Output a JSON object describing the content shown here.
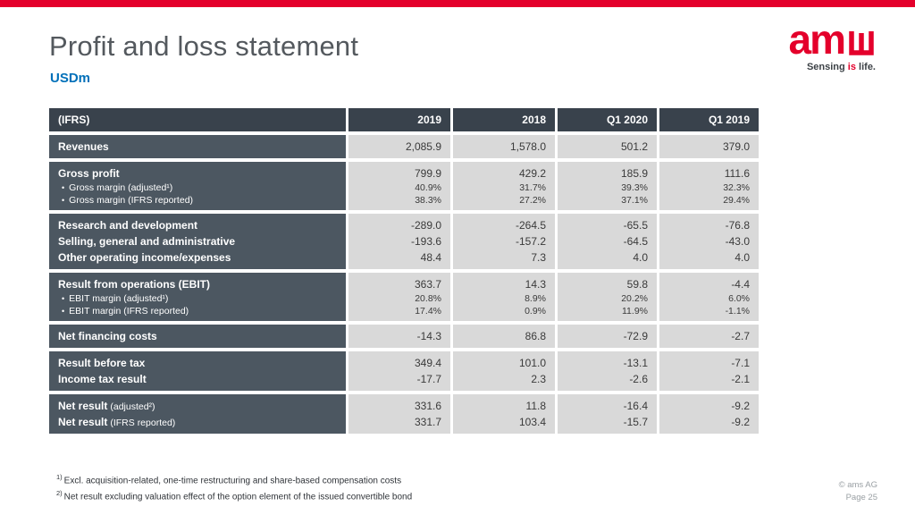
{
  "meta": {
    "accent_red": "#e4002b",
    "subtitle_blue": "#0070b9",
    "header_bg": "#39424c",
    "label_bg": "#4c5761",
    "value_bg": "#d9d9d9"
  },
  "header": {
    "title": "Profit and loss statement",
    "subtitle": "USDm"
  },
  "logo": {
    "text": "am",
    "tagline1": "Sensing ",
    "tagline2": "is",
    "tagline3": " life."
  },
  "table": {
    "columns": [
      "(IFRS)",
      "2019",
      "2018",
      "Q1 2020",
      "Q1 2019"
    ],
    "sections": [
      {
        "rows": [
          {
            "style": "main",
            "label": "Revenues",
            "suffix": "",
            "values": [
              "2,085.9",
              "1,578.0",
              "501.2",
              "379.0"
            ]
          }
        ]
      },
      {
        "rows": [
          {
            "style": "main",
            "label": "Gross profit",
            "suffix": "",
            "values": [
              "799.9",
              "429.2",
              "185.9",
              "111.6"
            ]
          },
          {
            "style": "sub",
            "label": "Gross margin (adjusted¹)",
            "suffix": "",
            "values": [
              "40.9%",
              "31.7%",
              "39.3%",
              "32.3%"
            ]
          },
          {
            "style": "sub",
            "label": "Gross margin (IFRS reported)",
            "suffix": "",
            "values": [
              "38.3%",
              "27.2%",
              "37.1%",
              "29.4%"
            ]
          }
        ]
      },
      {
        "rows": [
          {
            "style": "main",
            "label": "Research and development",
            "suffix": "",
            "values": [
              "-289.0",
              "-264.5",
              "-65.5",
              "-76.8"
            ]
          },
          {
            "style": "main",
            "label": "Selling, general and administrative",
            "suffix": "",
            "values": [
              "-193.6",
              "-157.2",
              "-64.5",
              "-43.0"
            ]
          },
          {
            "style": "main",
            "label": "Other operating income/expenses",
            "suffix": "",
            "values": [
              "48.4",
              "7.3",
              "4.0",
              "4.0"
            ]
          }
        ]
      },
      {
        "rows": [
          {
            "style": "main",
            "label": "Result from operations (EBIT)",
            "suffix": "",
            "values": [
              "363.7",
              "14.3",
              "59.8",
              "-4.4"
            ]
          },
          {
            "style": "sub",
            "label": "EBIT margin (adjusted¹)",
            "suffix": "",
            "values": [
              "20.8%",
              "8.9%",
              "20.2%",
              "6.0%"
            ]
          },
          {
            "style": "sub",
            "label": "EBIT margin (IFRS reported)",
            "suffix": "",
            "values": [
              "17.4%",
              "0.9%",
              "11.9%",
              "-1.1%"
            ]
          }
        ]
      },
      {
        "rows": [
          {
            "style": "main",
            "label": "Net financing costs",
            "suffix": "",
            "values": [
              "-14.3",
              "86.8",
              "-72.9",
              "-2.7"
            ]
          }
        ]
      },
      {
        "rows": [
          {
            "style": "main",
            "label": "Result before tax",
            "suffix": "",
            "values": [
              "349.4",
              "101.0",
              "-13.1",
              "-7.1"
            ]
          },
          {
            "style": "main",
            "label": "Income tax result",
            "suffix": "",
            "values": [
              "-17.7",
              "2.3",
              "-2.6",
              "-2.1"
            ]
          }
        ]
      },
      {
        "rows": [
          {
            "style": "main",
            "label": "Net result",
            "suffix": "(adjusted²)",
            "values": [
              "331.6",
              "11.8",
              "-16.4",
              "-9.2"
            ]
          },
          {
            "style": "main",
            "label": "Net result",
            "suffix": "(IFRS reported)",
            "values": [
              "331.7",
              "103.4",
              "-15.7",
              "-9.2"
            ]
          }
        ]
      }
    ]
  },
  "footnotes": [
    {
      "sup": "1)",
      "text": "Excl. acquisition-related, one-time restructuring and share-based compensation costs"
    },
    {
      "sup": "2)",
      "text": "Net result excluding valuation effect of the option element of the issued convertible bond"
    }
  ],
  "footer": {
    "copyright": "© ams AG",
    "page": "Page 25"
  }
}
